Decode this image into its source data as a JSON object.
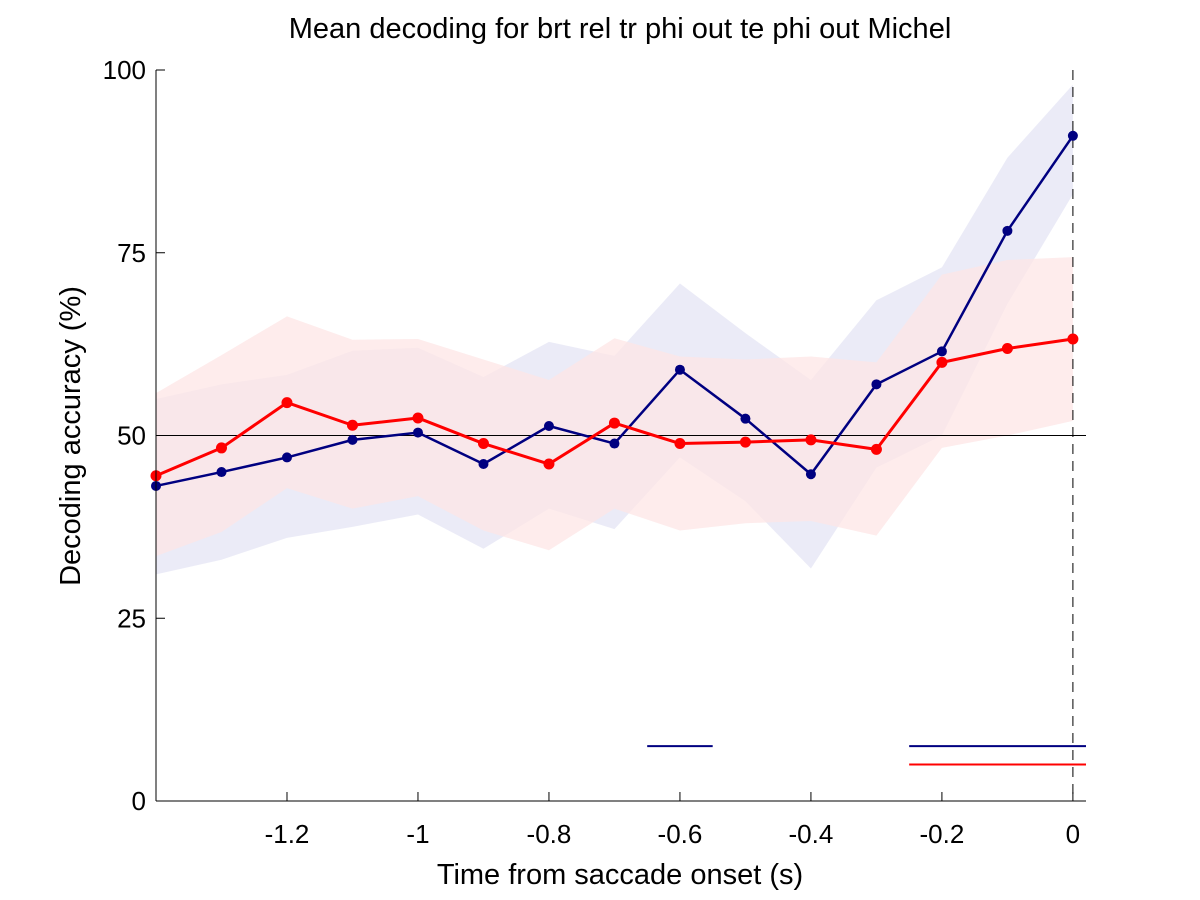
{
  "chart_data": {
    "type": "line",
    "title": "Mean decoding for brt rel tr phi out te phi out  Michel",
    "xlabel": "Time from saccade onset (s)",
    "ylabel": "Decoding accuracy (%)",
    "xlim": [
      -1.4,
      0.02
    ],
    "ylim": [
      0,
      100
    ],
    "x_ticks": [
      -1.2,
      -1,
      -0.8,
      -0.6,
      -0.4,
      -0.2,
      0
    ],
    "x_tick_labels": [
      "-1.2",
      "-1",
      "-0.8",
      "-0.6",
      "-0.4",
      "-0.2",
      "0"
    ],
    "y_ticks": [
      0,
      25,
      50,
      75,
      100
    ],
    "y_tick_labels": [
      "0",
      "25",
      "50",
      "75",
      "100"
    ],
    "chance_level": 50,
    "event_line_x": 0,
    "grid": false,
    "x": [
      -1.4,
      -1.3,
      -1.2,
      -1.1,
      -1.0,
      -0.9,
      -0.8,
      -0.7,
      -0.6,
      -0.5,
      -0.4,
      -0.3,
      -0.2,
      -0.1,
      0.0
    ],
    "series": [
      {
        "color": "#000080",
        "band_color": "#e8e8f6",
        "values": [
          43.1,
          45.0,
          47.0,
          49.4,
          50.4,
          46.1,
          51.3,
          48.9,
          59.0,
          52.3,
          44.7,
          57.0,
          61.5,
          78.0,
          91.0
        ],
        "lower": [
          31.0,
          33.0,
          36.0,
          37.5,
          39.2,
          34.5,
          40.0,
          37.2,
          47.0,
          41.0,
          31.8,
          45.6,
          50.0,
          68.0,
          83.0
        ],
        "upper": [
          55.0,
          57.0,
          58.3,
          61.6,
          62.0,
          58.0,
          62.8,
          60.9,
          70.8,
          64.0,
          57.6,
          68.5,
          73.0,
          88.0,
          98.0
        ],
        "significance_segments": [
          [
            -0.65,
            -0.55
          ],
          [
            -0.25,
            0.02
          ]
        ],
        "significance_y": 7.5
      },
      {
        "color": "#ff0000",
        "band_color": "#fde6e6",
        "values": [
          44.5,
          48.3,
          54.5,
          51.4,
          52.4,
          48.9,
          46.1,
          51.7,
          48.9,
          49.1,
          49.4,
          48.1,
          60.0,
          61.9,
          63.2
        ],
        "lower": [
          33.5,
          36.8,
          42.8,
          40.0,
          41.7,
          37.0,
          34.3,
          40.0,
          37.0,
          38.0,
          38.3,
          36.3,
          48.3,
          50.0,
          52.0
        ],
        "upper": [
          55.8,
          61.0,
          66.3,
          63.1,
          63.2,
          60.4,
          57.6,
          63.3,
          60.8,
          60.4,
          60.8,
          60.0,
          72.0,
          74.0,
          74.4
        ],
        "significance_segments": [
          [
            -0.25,
            0.02
          ]
        ],
        "significance_y": 5.0
      }
    ]
  }
}
